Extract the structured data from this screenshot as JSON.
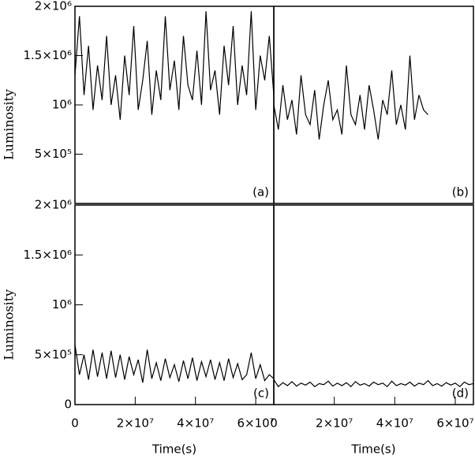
{
  "chart_data": [
    {
      "type": "line",
      "panel_label": "(a)",
      "y_label": "Luminosity",
      "x": [
        0,
        1500000,
        3000000,
        4500000,
        6000000,
        7500000,
        9000000,
        10500000,
        12000000,
        13500000,
        15000000,
        16500000,
        18000000,
        19500000,
        21000000,
        22500000,
        24000000,
        25500000,
        27000000,
        28500000,
        30000000,
        31500000,
        33000000,
        34500000,
        36000000,
        37500000,
        39000000,
        40500000,
        42000000,
        43500000,
        45000000,
        46500000,
        48000000,
        49500000,
        51000000,
        52500000,
        54000000,
        55500000,
        57000000,
        58500000,
        60000000,
        61500000,
        63000000,
        64500000,
        66000000
      ],
      "series": [
        {
          "color": "#000000",
          "values": [
            1300000,
            1900000,
            1100000,
            1600000,
            950000,
            1400000,
            1050000,
            1700000,
            1000000,
            1300000,
            850000,
            1500000,
            1100000,
            1800000,
            950000,
            1250000,
            1650000,
            900000,
            1350000,
            1050000,
            1900000,
            1150000,
            1450000,
            950000,
            1700000,
            1200000,
            1050000,
            1550000,
            1000000,
            1950000,
            1150000,
            1350000,
            900000,
            1600000,
            1200000,
            1800000,
            1000000,
            1400000,
            1100000,
            1950000,
            950000,
            1500000,
            1250000,
            1700000,
            1100000
          ]
        }
      ],
      "xlim": [
        0,
        66000000
      ],
      "ylim": [
        0,
        2000000
      ],
      "yticks": [
        {
          "value": 500000,
          "label": "5×10⁵"
        },
        {
          "value": 1000000,
          "label": "10⁶"
        },
        {
          "value": 1500000,
          "label": "1.5×10⁶"
        },
        {
          "value": 2000000,
          "label": "2×10⁶"
        }
      ]
    },
    {
      "type": "line",
      "panel_label": "(b)",
      "x": [
        0,
        1500000,
        3000000,
        4500000,
        6000000,
        7500000,
        9000000,
        10500000,
        12000000,
        13500000,
        15000000,
        16500000,
        18000000,
        19500000,
        21000000,
        22500000,
        24000000,
        25500000,
        27000000,
        28500000,
        30000000,
        31500000,
        33000000,
        34500000,
        36000000,
        37500000,
        39000000,
        40500000,
        42000000,
        43500000,
        45000000,
        46500000,
        48000000,
        49500000,
        51000000
      ],
      "series": [
        {
          "color": "#000000",
          "values": [
            1000000,
            750000,
            1200000,
            850000,
            1050000,
            700000,
            1300000,
            900000,
            800000,
            1150000,
            650000,
            1000000,
            1250000,
            850000,
            950000,
            700000,
            1400000,
            900000,
            800000,
            1100000,
            750000,
            1200000,
            950000,
            650000,
            1050000,
            900000,
            1350000,
            800000,
            1000000,
            750000,
            1500000,
            850000,
            1100000,
            950000,
            900000
          ]
        }
      ],
      "xlim": [
        0,
        66000000
      ],
      "ylim": [
        0,
        2000000
      ]
    },
    {
      "type": "line",
      "panel_label": "(c)",
      "y_label": "Luminosity",
      "x_label": "Time(s)",
      "x": [
        0,
        1500000,
        3000000,
        4500000,
        6000000,
        7500000,
        9000000,
        10500000,
        12000000,
        13500000,
        15000000,
        16500000,
        18000000,
        19500000,
        21000000,
        22500000,
        24000000,
        25500000,
        27000000,
        28500000,
        30000000,
        31500000,
        33000000,
        34500000,
        36000000,
        37500000,
        39000000,
        40500000,
        42000000,
        43500000,
        45000000,
        46500000,
        48000000,
        49500000,
        51000000,
        52500000,
        54000000,
        55500000,
        57000000,
        58500000,
        60000000,
        61500000,
        63000000,
        64500000,
        66000000
      ],
      "series": [
        {
          "color": "#000000",
          "values": [
            600000,
            300000,
            500000,
            250000,
            550000,
            280000,
            520000,
            260000,
            540000,
            270000,
            500000,
            250000,
            480000,
            300000,
            450000,
            220000,
            550000,
            260000,
            420000,
            240000,
            460000,
            270000,
            400000,
            230000,
            440000,
            260000,
            470000,
            240000,
            430000,
            280000,
            450000,
            250000,
            420000,
            240000,
            460000,
            270000,
            410000,
            250000,
            300000,
            520000,
            260000,
            400000,
            240000,
            300000,
            260000
          ]
        }
      ],
      "xlim": [
        0,
        66000000
      ],
      "ylim": [
        0,
        2000000
      ],
      "yticks": [
        0,
        {
          "value": 500000,
          "label": "5×10⁵"
        },
        {
          "value": 1000000,
          "label": "10⁶"
        },
        {
          "value": 1500000,
          "label": "1.5×10⁶"
        },
        {
          "value": 2000000,
          "label": "2×10⁶"
        }
      ],
      "xticks": [
        0,
        {
          "value": 20000000,
          "label": "2×10⁷"
        },
        {
          "value": 40000000,
          "label": "4×10⁷"
        },
        {
          "value": 60000000,
          "label": "6×10⁷"
        }
      ]
    },
    {
      "type": "line",
      "panel_label": "(d)",
      "x_label": "Time(s)",
      "x": [
        0,
        1500000,
        3000000,
        4500000,
        6000000,
        7500000,
        9000000,
        10500000,
        12000000,
        13500000,
        15000000,
        16500000,
        18000000,
        19500000,
        21000000,
        22500000,
        24000000,
        25500000,
        27000000,
        28500000,
        30000000,
        31500000,
        33000000,
        34500000,
        36000000,
        37500000,
        39000000,
        40500000,
        42000000,
        43500000,
        45000000,
        46500000,
        48000000,
        49500000,
        51000000,
        52500000,
        54000000,
        55500000,
        57000000,
        58500000,
        60000000,
        61500000,
        63000000,
        64500000,
        66000000
      ],
      "series": [
        {
          "color": "#000000",
          "values": [
            250000,
            180000,
            220000,
            190000,
            230000,
            185000,
            215000,
            195000,
            225000,
            180000,
            210000,
            200000,
            235000,
            185000,
            215000,
            190000,
            220000,
            180000,
            230000,
            195000,
            210000,
            185000,
            225000,
            200000,
            215000,
            180000,
            235000,
            190000,
            210000,
            195000,
            225000,
            185000,
            215000,
            200000,
            240000,
            190000,
            210000,
            185000,
            220000,
            195000,
            215000,
            180000,
            225000,
            200000,
            210000
          ]
        }
      ],
      "xlim": [
        0,
        66000000
      ],
      "ylim": [
        0,
        2000000
      ],
      "xticks": [
        0,
        {
          "value": 20000000,
          "label": "2×10⁷"
        },
        {
          "value": 40000000,
          "label": "4×10⁷"
        },
        {
          "value": 60000000,
          "label": "6×10⁷"
        }
      ]
    }
  ]
}
